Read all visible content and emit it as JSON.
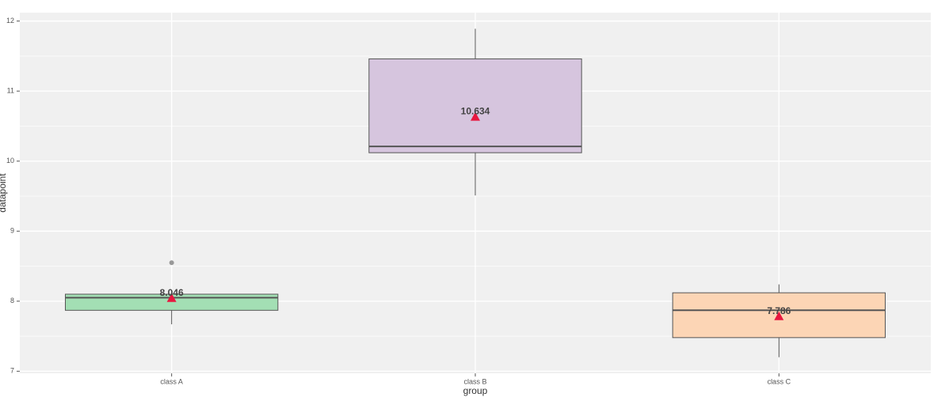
{
  "chart_data": {
    "type": "box",
    "x_label": "group",
    "y_label": "datapoint",
    "categories": [
      "class A",
      "class B",
      "class C"
    ],
    "colors": [
      "#a3dfb4",
      "#d6c5de",
      "#fcd5b5"
    ],
    "min": [
      7.67,
      9.51,
      7.2
    ],
    "q1": [
      7.87,
      10.12,
      7.48
    ],
    "median": [
      8.05,
      10.21,
      7.87
    ],
    "q3": [
      8.1,
      11.46,
      8.12
    ],
    "max": [
      8.1,
      11.89,
      8.24
    ],
    "outliers": [
      [
        8.55
      ],
      [],
      []
    ],
    "means": [
      8.046,
      10.634,
      7.786
    ],
    "mean_color": "#e8173f",
    "ylim": [
      6.97,
      12.12
    ],
    "yticks": [
      7,
      8,
      9,
      10,
      11,
      12
    ],
    "grid": true
  }
}
